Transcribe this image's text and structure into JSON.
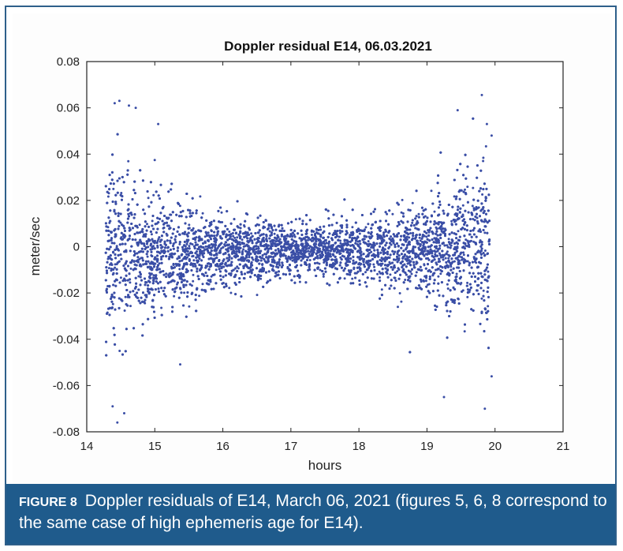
{
  "chart_data": {
    "type": "scatter",
    "title": "Doppler residual E14,  06.03.2021",
    "xlabel": "hours",
    "ylabel": "meter/sec",
    "xlim": [
      14,
      21
    ],
    "ylim": [
      -0.08,
      0.08
    ],
    "xticks": [
      "14",
      "15",
      "16",
      "17",
      "18",
      "19",
      "20",
      "21"
    ],
    "yticks": [
      "0.08",
      "0.06",
      "0.04",
      "0.02",
      "0",
      "-0.02",
      "-0.04",
      "-0.06",
      "-0.08"
    ],
    "grid": false,
    "marker_color": "#3a4ea6",
    "data_range_x": [
      14.28,
      19.92
    ],
    "series": [
      {
        "values_description": "dense cloud of residuals",
        "outliers": [
          {
            "x": 14.41,
            "y": 0.062
          },
          {
            "x": 14.48,
            "y": 0.063
          },
          {
            "x": 14.62,
            "y": 0.061
          },
          {
            "x": 14.72,
            "y": 0.06
          },
          {
            "x": 15.05,
            "y": 0.053
          },
          {
            "x": 19.45,
            "y": 0.059
          },
          {
            "x": 19.88,
            "y": 0.053
          },
          {
            "x": 14.45,
            "y": -0.076
          },
          {
            "x": 14.38,
            "y": -0.069
          },
          {
            "x": 14.55,
            "y": -0.072
          },
          {
            "x": 19.25,
            "y": -0.065
          },
          {
            "x": 19.85,
            "y": -0.07
          },
          {
            "x": 19.95,
            "y": -0.056
          },
          {
            "x": 19.95,
            "y": 0.048
          }
        ]
      }
    ]
  },
  "caption": {
    "label": "FIGURE 8",
    "text": "Doppler residuals of E14, March 06, 2021 (figures 5, 6, 8 correspond to the same case of high ephemeris age for E14)."
  },
  "colors": {
    "frame": "#2e5f8a",
    "caption_bg": "#1f5b8c",
    "points": "#3a4ea6"
  }
}
